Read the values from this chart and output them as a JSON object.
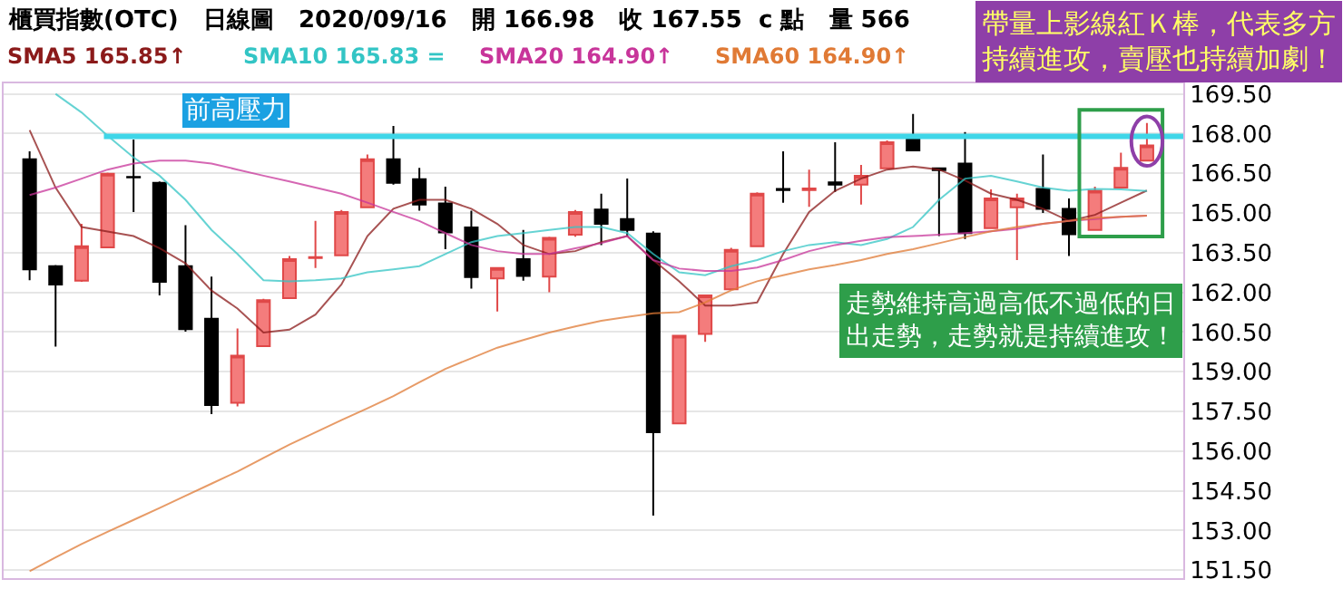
{
  "chart_data": {
    "type": "candlestick",
    "title": "櫃買指數(OTC)   日線圖   2020/09/16   開 166.98   收 167.55  c 點   量 566",
    "categories": [
      null,
      null,
      null,
      null,
      null,
      null,
      null,
      null,
      null,
      null,
      null,
      null,
      null,
      null,
      null,
      null,
      null,
      null,
      null,
      null,
      null,
      null,
      null,
      null,
      null,
      null,
      null,
      null,
      null,
      null,
      null,
      null,
      null,
      null,
      null,
      null,
      null,
      null,
      null,
      null,
      null,
      null,
      null,
      null
    ],
    "ohlc": [
      [
        167.03,
        167.33,
        162.46,
        162.87
      ],
      [
        162.99,
        163.03,
        159.95,
        162.3
      ],
      [
        162.44,
        164.59,
        162.4,
        163.74
      ],
      [
        163.7,
        166.53,
        163.67,
        166.48
      ],
      [
        166.36,
        167.78,
        165.04,
        166.35
      ],
      [
        166.14,
        166.19,
        161.89,
        162.4
      ],
      [
        162.99,
        164.54,
        160.52,
        160.61
      ],
      [
        161.0,
        162.6,
        157.4,
        157.74
      ],
      [
        157.83,
        160.64,
        157.69,
        159.61
      ],
      [
        159.97,
        161.76,
        159.97,
        161.71
      ],
      [
        161.78,
        163.38,
        161.78,
        163.26
      ],
      [
        163.3,
        164.7,
        162.92,
        163.33
      ],
      [
        163.4,
        165.11,
        163.4,
        165.04
      ],
      [
        165.22,
        167.21,
        165.22,
        167.03
      ],
      [
        167.03,
        168.29,
        166.07,
        166.14
      ],
      [
        166.28,
        166.71,
        165.09,
        165.32
      ],
      [
        165.36,
        166.0,
        163.63,
        164.27
      ],
      [
        164.45,
        165.09,
        162.14,
        162.58
      ],
      [
        162.53,
        162.94,
        161.28,
        162.92
      ],
      [
        163.26,
        164.36,
        162.44,
        162.62
      ],
      [
        162.6,
        164.1,
        162.01,
        164.06
      ],
      [
        164.18,
        165.11,
        164.1,
        165.04
      ],
      [
        165.13,
        165.73,
        163.79,
        164.59
      ],
      [
        164.77,
        166.3,
        164.13,
        164.36
      ],
      [
        164.22,
        164.31,
        153.56,
        156.71
      ],
      [
        157.05,
        160.4,
        157.05,
        160.36
      ],
      [
        160.43,
        161.92,
        160.13,
        161.89
      ],
      [
        162.12,
        163.68,
        162.12,
        163.61
      ],
      [
        163.74,
        165.78,
        163.74,
        165.73
      ],
      [
        165.91,
        167.33,
        165.39,
        165.87
      ],
      [
        165.87,
        166.64,
        165.23,
        165.93
      ],
      [
        166.16,
        167.67,
        165.8,
        166.07
      ],
      [
        166.07,
        166.82,
        165.32,
        166.41
      ],
      [
        166.69,
        167.74,
        166.69,
        167.67
      ],
      [
        167.78,
        168.74,
        167.33,
        167.37
      ],
      [
        166.69,
        166.69,
        164.13,
        166.62
      ],
      [
        166.87,
        168.06,
        164.02,
        164.24
      ],
      [
        164.43,
        165.89,
        164.43,
        165.55
      ],
      [
        165.22,
        165.73,
        163.22,
        165.55
      ],
      [
        165.91,
        167.21,
        165.0,
        165.16
      ],
      [
        165.16,
        165.55,
        163.38,
        164.2
      ],
      [
        164.36,
        166.0,
        164.36,
        165.84
      ],
      [
        165.96,
        167.28,
        165.96,
        166.71
      ],
      [
        166.98,
        168.4,
        166.98,
        167.55
      ]
    ],
    "series": [
      {
        "type": "line",
        "name": "SMA5 165.85↑",
        "color": "#8b1a1a",
        "values": [
          168.13,
          165.96,
          164.47,
          164.3,
          164.13,
          163.67,
          163.1,
          162.07,
          161.39,
          160.48,
          160.59,
          161.16,
          162.3,
          164.13,
          165.16,
          165.5,
          165.5,
          165.16,
          164.59,
          163.79,
          163.45,
          163.56,
          163.9,
          164.13,
          163.22,
          162.42,
          161.5,
          161.5,
          161.62,
          163.45,
          165.04,
          165.84,
          166.3,
          166.64,
          166.76,
          166.64,
          166.23,
          165.73,
          165.5,
          165.16,
          164.7,
          164.93,
          165.39,
          165.85
        ]
      },
      {
        "type": "line",
        "name": "SMA10 165.83 =",
        "color": "#33c5c5",
        "values": [
          null,
          169.5,
          168.8,
          167.92,
          167.1,
          166.41,
          165.5,
          164.36,
          163.45,
          162.46,
          162.42,
          162.46,
          162.53,
          162.76,
          162.87,
          162.99,
          163.45,
          163.9,
          164.13,
          164.24,
          164.36,
          164.47,
          164.47,
          164.24,
          163.45,
          162.76,
          162.65,
          162.99,
          163.22,
          163.56,
          163.79,
          163.9,
          163.79,
          164.02,
          164.47,
          165.5,
          166.3,
          166.41,
          166.19,
          165.96,
          165.84,
          165.91,
          165.89,
          165.83
        ]
      },
      {
        "type": "line",
        "name": "SMA20 164.90↑",
        "color": "#c8359a",
        "values": [
          165.68,
          165.96,
          166.3,
          166.64,
          166.87,
          166.98,
          166.98,
          166.87,
          166.64,
          166.41,
          166.19,
          165.96,
          165.73,
          165.39,
          165.04,
          164.7,
          164.24,
          163.79,
          163.56,
          163.45,
          163.45,
          163.67,
          163.86,
          164.13,
          163.22,
          162.9,
          162.81,
          162.81,
          162.94,
          163.22,
          163.56,
          163.79,
          163.95,
          164.09,
          164.13,
          164.18,
          164.24,
          164.31,
          164.4,
          164.59,
          164.7,
          164.77,
          164.86,
          164.9
        ]
      },
      {
        "type": "line",
        "name": "SMA60 164.90↑",
        "color": "#e07a35",
        "values": [
          151.46,
          151.98,
          152.49,
          152.95,
          153.4,
          153.85,
          154.31,
          154.77,
          155.23,
          155.74,
          156.25,
          156.71,
          157.17,
          157.62,
          158.08,
          158.6,
          159.11,
          159.51,
          159.91,
          160.2,
          160.48,
          160.71,
          160.93,
          161.07,
          161.21,
          161.25,
          161.62,
          162.08,
          162.42,
          162.65,
          162.87,
          163.03,
          163.22,
          163.45,
          163.63,
          163.86,
          164.09,
          164.31,
          164.47,
          164.59,
          164.7,
          164.81,
          164.86,
          164.9
        ]
      }
    ],
    "ylim": [
      151.2,
      169.9
    ],
    "yticks": [
      {
        "value": 151.5,
        "label": "151.50"
      },
      {
        "value": 153,
        "label": "153.00"
      },
      {
        "value": 154.5,
        "label": "154.50"
      },
      {
        "value": 156,
        "label": "156.00"
      },
      {
        "value": 157.5,
        "label": "157.50"
      },
      {
        "value": 159,
        "label": "159.00"
      },
      {
        "value": 160.5,
        "label": "160.50"
      },
      {
        "value": 162,
        "label": "162.00"
      },
      {
        "value": 163.5,
        "label": "163.50"
      },
      {
        "value": 165,
        "label": "165.00"
      },
      {
        "value": 166.5,
        "label": "166.50"
      },
      {
        "value": 168,
        "label": "168.00"
      },
      {
        "value": 169.5,
        "label": "169.50"
      }
    ],
    "ref_lines": [
      {
        "axis": "y",
        "value": 167.9,
        "label": "前高壓力",
        "color": "#3fd6e8"
      }
    ],
    "annotations": [
      "帶量上影線紅Ｋ棒，代表多方持續進攻，賣壓也持續加劇！",
      "走勢維持高過高低不過低的日出走勢，走勢就是持續進攻！"
    ],
    "grid": "y",
    "legend": "top left",
    "tick_labels": "y"
  }
}
